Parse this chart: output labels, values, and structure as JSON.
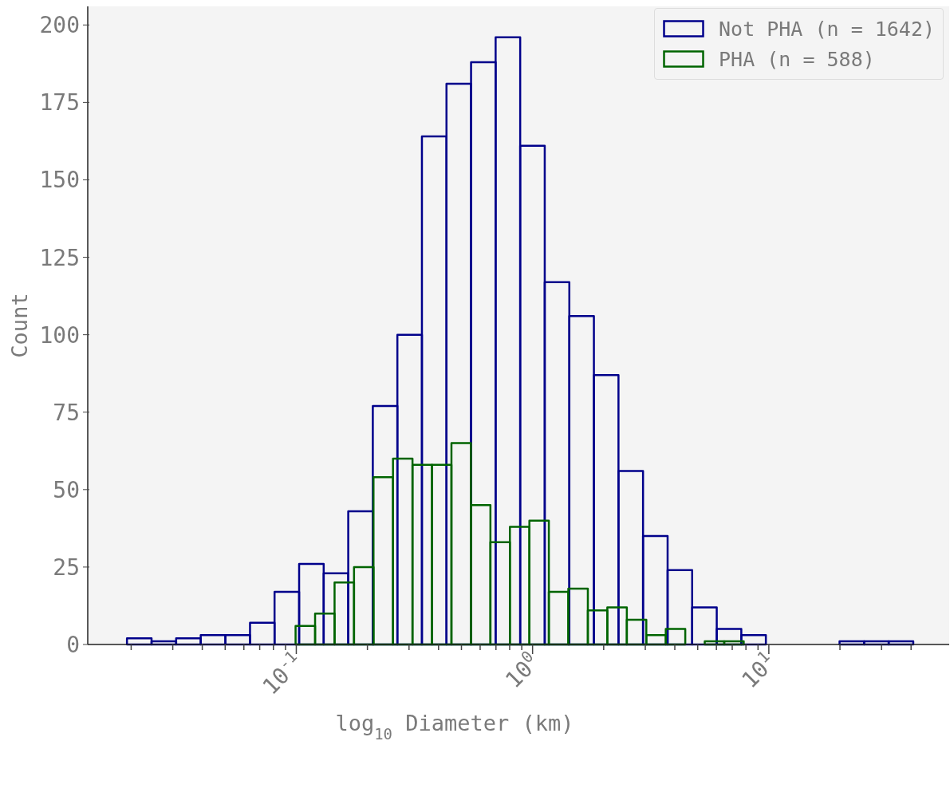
{
  "chart_data": {
    "type": "histogram",
    "xlabel": "log$_{10}$ Diameter (km)",
    "ylabel": "Count",
    "log": "x",
    "xlim": [
      0.0131,
      58
    ],
    "xticks": [
      {
        "value": 0.02,
        "label": null
      },
      {
        "value": 0.03,
        "label": null
      },
      {
        "value": 0.04,
        "label": null
      },
      {
        "value": 0.05,
        "label": null
      },
      {
        "value": 0.06,
        "label": null
      },
      {
        "value": 0.07,
        "label": null
      },
      {
        "value": 0.08,
        "label": null
      },
      {
        "value": 0.09,
        "label": null
      },
      {
        "value": 0.1,
        "label": "10$^{-1}$"
      },
      {
        "value": 0.2,
        "label": null
      },
      {
        "value": 0.3,
        "label": null
      },
      {
        "value": 0.4,
        "label": null
      },
      {
        "value": 0.5,
        "label": null
      },
      {
        "value": 0.6,
        "label": null
      },
      {
        "value": 0.7,
        "label": null
      },
      {
        "value": 0.8,
        "label": null
      },
      {
        "value": 0.9,
        "label": null
      },
      {
        "value": 1,
        "label": "10$^{0}$"
      },
      {
        "value": 2,
        "label": null
      },
      {
        "value": 3,
        "label": null
      },
      {
        "value": 4,
        "label": null
      },
      {
        "value": 5,
        "label": null
      },
      {
        "value": 6,
        "label": null
      },
      {
        "value": 7,
        "label": null
      },
      {
        "value": 8,
        "label": null
      },
      {
        "value": 9,
        "label": null
      },
      {
        "value": 10,
        "label": "10$^{1}$"
      },
      {
        "value": 20,
        "label": null
      },
      {
        "value": 30,
        "label": null
      },
      {
        "value": 40,
        "label": null
      }
    ],
    "ylim": [
      0,
      206
    ],
    "bins": [
      0.0192,
      0.0244,
      0.031,
      0.0394,
      0.0501,
      0.0637,
      0.0809,
      0.1028,
      0.1306,
      0.1659,
      0.2108,
      0.2678,
      0.3402,
      0.4322,
      0.5491,
      0.6977,
      0.8864,
      1.126,
      1.431,
      1.818,
      2.31,
      2.935,
      3.729,
      4.737,
      6.019,
      7.647,
      9.715,
      12.34,
      15.68,
      19.92,
      25.31,
      32.16,
      40.86
    ],
    "yticks": [
      0,
      25,
      50,
      75,
      100,
      125,
      150,
      175,
      200
    ],
    "grid": false,
    "legend": "top right",
    "series": [
      {
        "name": "Not PHA (n = 1642)",
        "color": "#00008b",
        "values": [
          2,
          1,
          2,
          3,
          3,
          7,
          17,
          26,
          23,
          43,
          77,
          100,
          164,
          181,
          188,
          196,
          161,
          117,
          106,
          87,
          56,
          35,
          24,
          12,
          5,
          3,
          0,
          0,
          0,
          1,
          1,
          1
        ]
      },
      {
        "name": "PHA (n = 588)",
        "color": "#006400",
        "bins": [
          0.0993,
          0.1201,
          0.1452,
          0.1755,
          0.2122,
          0.2566,
          0.3103,
          0.3752,
          0.4536,
          0.5485,
          0.6632,
          0.8018,
          0.9695,
          1.172,
          1.417,
          1.714,
          2.072,
          2.506,
          3.03,
          3.663,
          4.429,
          5.355,
          6.475,
          7.829
        ],
        "values": [
          6,
          10,
          20,
          25,
          54,
          60,
          58,
          58,
          65,
          45,
          33,
          38,
          40,
          17,
          18,
          11,
          12,
          8,
          3,
          5,
          0,
          1,
          1
        ]
      }
    ]
  }
}
